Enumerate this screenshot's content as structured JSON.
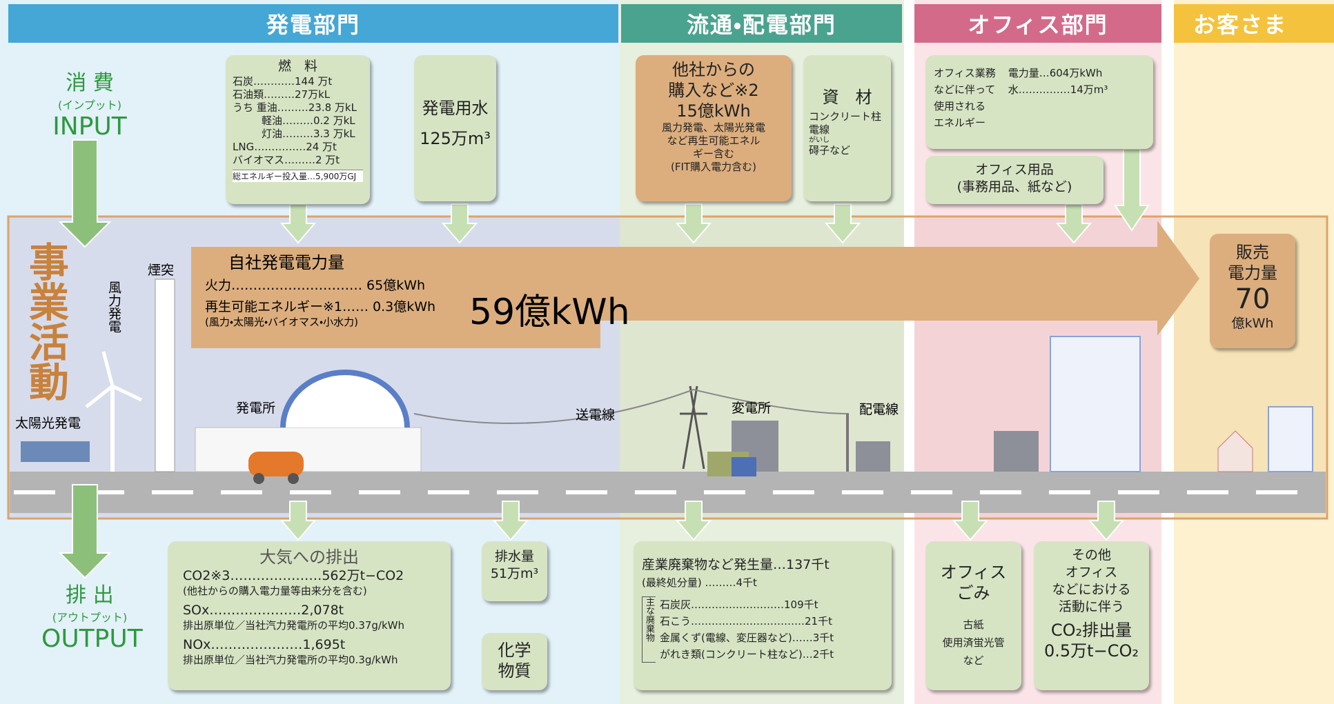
{
  "header": {
    "sections": [
      "発電部門",
      "流通・配電部門",
      "オフィス部門",
      "お客さま"
    ]
  },
  "input": {
    "label": "消 費",
    "note": "(インプット)",
    "english": "INPUT"
  },
  "output": {
    "label": "排 出",
    "note": "(アウトプット)",
    "english": "OUTPUT"
  },
  "business_activity": "事業活動",
  "fuel": {
    "title": "燃　料",
    "rows": [
      "石炭…………144 万t",
      "石油類………27万kL",
      "うち 重油………23.8 万kL",
      "軽油………0.2 万kL",
      "灯油………3.3 万kL",
      "LNG……………24 万t",
      "バイオマス………2 万t"
    ],
    "total": "総エネルギー投入量…5,900万GJ"
  },
  "water": {
    "title": "発電用水",
    "amount": "125万m³"
  },
  "purchase": {
    "title": [
      "他社からの",
      "購入など※2"
    ],
    "amount": "15億kWh",
    "note": [
      "風力発電、太陽光発電",
      "など再生可能エネル",
      "ギー含む",
      "(FIT購入電力含む)"
    ]
  },
  "materials": {
    "title": "資　材",
    "items": [
      "コンクリート柱",
      "電線",
      "碍子など"
    ],
    "ruby": "がいし"
  },
  "office_energy": {
    "label": [
      "オフィス業務",
      "などに伴って",
      "使用される",
      "エネルギー"
    ],
    "rows": [
      "電力量…604万kWh",
      "水……………14万m³"
    ]
  },
  "office_supplies": [
    "オフィス用品",
    "(事務用品、紙など)"
  ],
  "generation": {
    "title": "自社発電電力量",
    "rows": [
      "火力………………………… 65億kWh",
      "再生可能エネルギー※1…… 0.3億kWh"
    ],
    "note": "(風力・太陽光・バイオマス・小水力)",
    "total": "59億kWh"
  },
  "sales": {
    "title": [
      "販売",
      "電力量"
    ],
    "amount": "70",
    "unit": "億kWh"
  },
  "scene": {
    "labels": [
      "煙突",
      "風力発電",
      "太陽光発電",
      "発電所",
      "送電線",
      "変電所",
      "配電線"
    ]
  },
  "atmosphere": {
    "title": "大気への排出",
    "rows": [
      "CO2※3…………………562万t−CO2",
      "(他社からの購入電力量等由来分を含む)",
      "SOx…………………2,078t",
      "排出原単位／当社汽力発電所の平均0.37g/kWh",
      "NOx…………………1,695t",
      "排出原単位／当社汽力発電所の平均0.3g/kWh"
    ]
  },
  "wastewater": {
    "title": "排水量",
    "amount": "51万m³"
  },
  "chemicals": [
    "化学",
    "物質"
  ],
  "waste": {
    "title": "産業廃棄物など発生量…137千t",
    "final": "(最終処分量) ………4千t",
    "bracket": "主な廃棄物",
    "rows": [
      "石炭灰………………………109千t",
      "石こう……………………………21千t",
      "金属くず(電線、変圧器など)……3千t",
      "がれき類(コンクリート柱など)…2千t"
    ]
  },
  "office_waste": {
    "title": [
      "オフィス",
      "ごみ"
    ],
    "items": [
      "古紙",
      "使用済蛍光管",
      "など"
    ]
  },
  "other_co2": {
    "title": [
      "その他",
      "オフィス",
      "などにおける",
      "活動に伴う"
    ],
    "label": "CO₂排出量",
    "amount": "0.5万t−CO₂"
  }
}
